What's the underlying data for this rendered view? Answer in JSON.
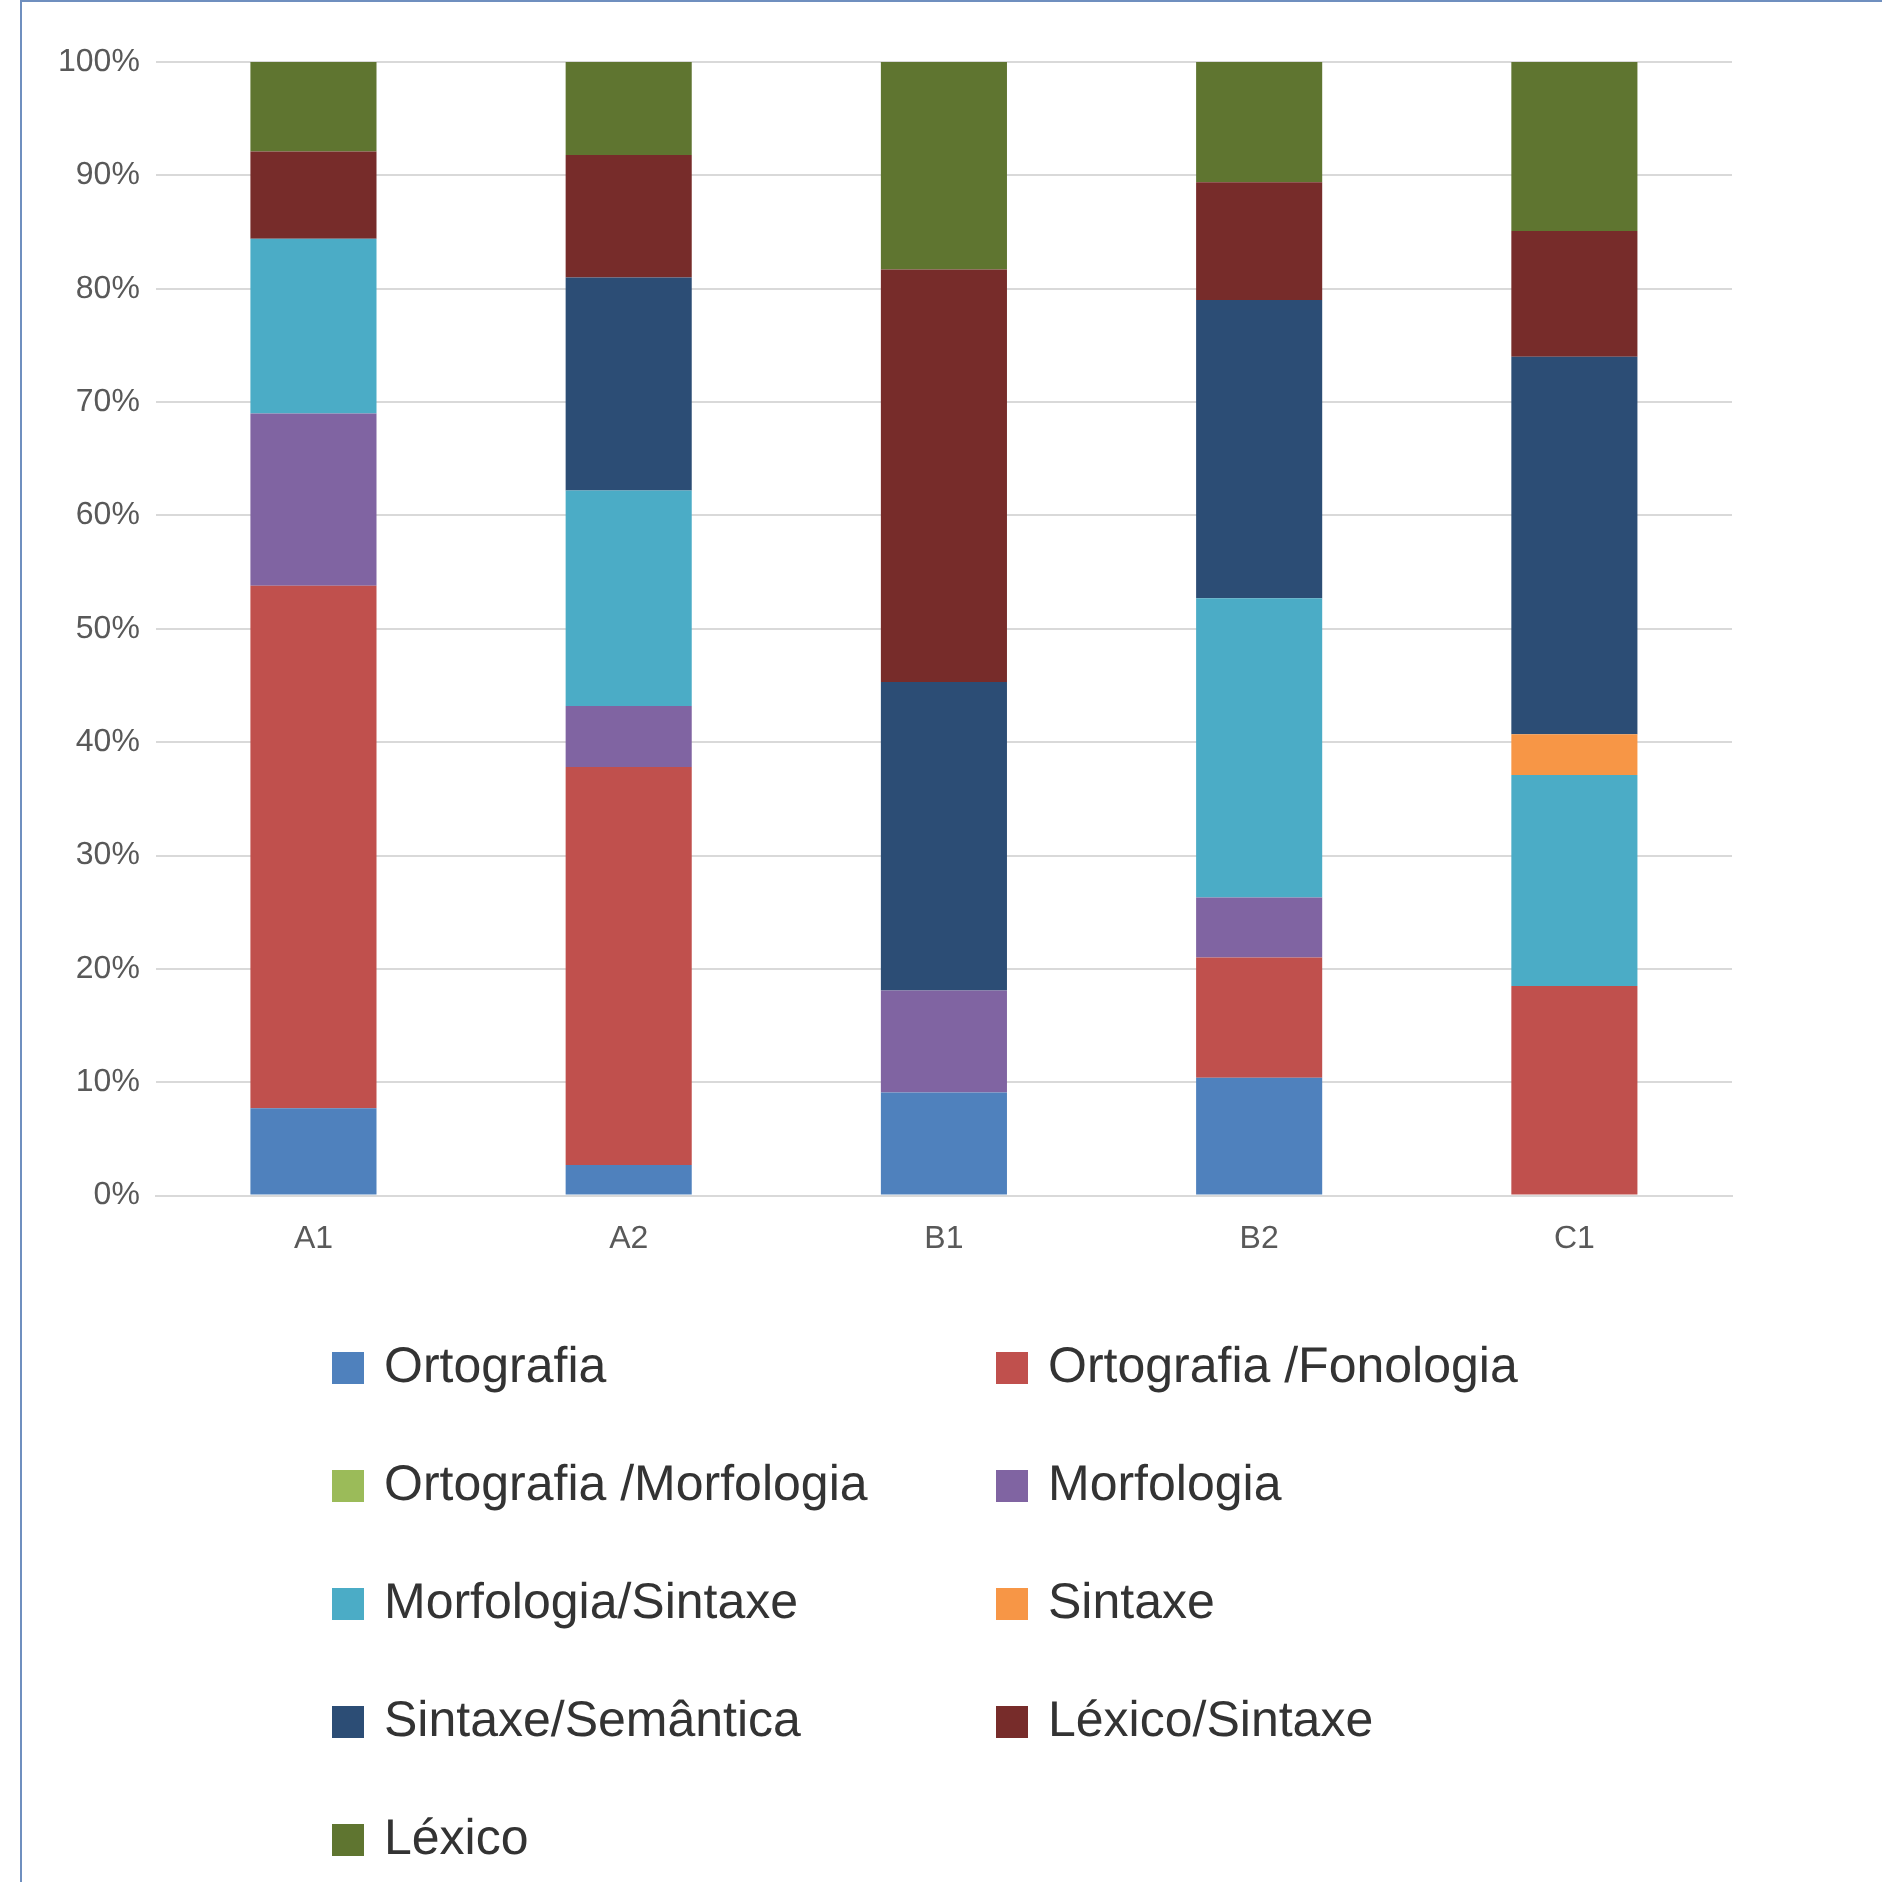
{
  "chart_data": {
    "type": "bar",
    "stacked": true,
    "categories": [
      "A1",
      "A2",
      "B1",
      "B2",
      "C1"
    ],
    "series": [
      {
        "name": "Ortografia",
        "color": "#4f81bd",
        "values": [
          7.7,
          2.7,
          9.1,
          10.4,
          0
        ]
      },
      {
        "name": "Ortografia /Fonologia",
        "color": "#c0504d",
        "values": [
          46.1,
          35.1,
          0,
          10.6,
          18.5
        ]
      },
      {
        "name": "Ortografia /Morfologia",
        "color": "#9bbb59",
        "values": [
          0,
          0,
          0,
          0,
          0
        ]
      },
      {
        "name": "Morfologia",
        "color": "#8064a2",
        "values": [
          15.2,
          5.4,
          9.0,
          5.3,
          0
        ]
      },
      {
        "name": "Morfologia/Sintaxe",
        "color": "#4bacc6",
        "values": [
          15.4,
          19.0,
          0,
          26.4,
          18.6
        ]
      },
      {
        "name": "Sintaxe",
        "color": "#f79646",
        "values": [
          0,
          0,
          0,
          0,
          3.6
        ]
      },
      {
        "name": "Sintaxe/Semântica",
        "color": "#2c4d75",
        "values": [
          0,
          18.8,
          27.2,
          26.3,
          33.3
        ]
      },
      {
        "name": "Léxico/Sintaxe",
        "color": "#772c2a",
        "values": [
          7.7,
          10.8,
          36.4,
          10.4,
          11.1
        ]
      },
      {
        "name": "Léxico",
        "color": "#5f7530",
        "values": [
          7.9,
          8.2,
          18.3,
          10.6,
          14.9
        ]
      }
    ],
    "ylim": [
      0,
      100
    ],
    "yticks": [
      {
        "value": 0,
        "label": "0%"
      },
      {
        "value": 10,
        "label": "10%"
      },
      {
        "value": 20,
        "label": "20%"
      },
      {
        "value": 30,
        "label": "30%"
      },
      {
        "value": 40,
        "label": "40%"
      },
      {
        "value": 50,
        "label": "50%"
      },
      {
        "value": 60,
        "label": "60%"
      },
      {
        "value": 70,
        "label": "70%"
      },
      {
        "value": 80,
        "label": "80%"
      },
      {
        "value": 90,
        "label": "90%"
      },
      {
        "value": 100,
        "label": "100%"
      }
    ],
    "grid": "y",
    "legend": "bottom"
  }
}
